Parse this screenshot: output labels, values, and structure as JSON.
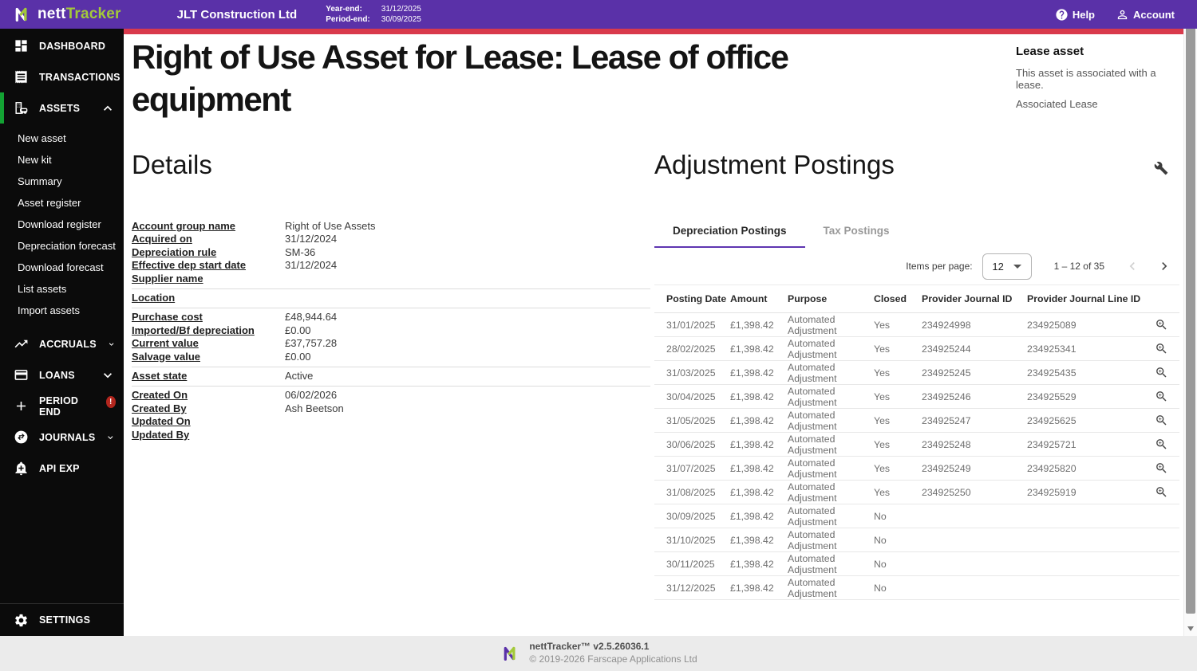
{
  "colors": {
    "purple": "#5a31a8",
    "red": "#d93a4c",
    "green": "#13a233",
    "logoGreen": "#a3c93a",
    "badge": "#b3261e",
    "tabPurple": "#5e35b1"
  },
  "header": {
    "brand_left": "nett",
    "brand_right": "Tracker",
    "company": "JLT Construction Ltd",
    "year_end_label": "Year-end:",
    "year_end_value": "31/12/2025",
    "period_end_label": "Period-end:",
    "period_end_value": "30/09/2025",
    "help_label": "Help",
    "account_label": "Account"
  },
  "sidebar": {
    "items": [
      {
        "label": "DASHBOARD"
      },
      {
        "label": "TRANSACTIONS"
      },
      {
        "label": "ASSETS"
      },
      {
        "label": "ACCRUALS"
      },
      {
        "label": "LOANS"
      },
      {
        "label": "PERIOD END",
        "badge": "!"
      },
      {
        "label": "JOURNALS"
      },
      {
        "label": "API EXP"
      }
    ],
    "assets_submenu": [
      "New asset",
      "New kit",
      "Summary",
      "Asset register",
      "Download register",
      "Depreciation forecast",
      "Download forecast",
      "List assets",
      "Import assets"
    ],
    "settings_label": "SETTINGS"
  },
  "page": {
    "title": "Right of Use Asset for Lease: Lease of office equipment"
  },
  "lease_panel": {
    "heading": "Lease asset",
    "text": "This asset is associated with a lease.",
    "link_label": "Associated Lease"
  },
  "details": {
    "heading": "Details",
    "groups": [
      {
        "fields": [
          {
            "label": "Account group name",
            "value": "Right of Use Assets"
          },
          {
            "label": "Acquired on",
            "value": "31/12/2024"
          },
          {
            "label": "Depreciation rule",
            "value": "SM-36"
          },
          {
            "label": "Effective dep start date",
            "value": "31/12/2024"
          },
          {
            "label": "Supplier name",
            "value": ""
          }
        ]
      },
      {
        "fields": [
          {
            "label": "Location",
            "value": ""
          }
        ]
      },
      {
        "fields": [
          {
            "label": "Purchase cost",
            "value": "£48,944.64"
          },
          {
            "label": "Imported/Bf depreciation",
            "value": "£0.00"
          },
          {
            "label": "Current value",
            "value": "£37,757.28"
          },
          {
            "label": "Salvage value",
            "value": "£0.00"
          }
        ]
      },
      {
        "fields": [
          {
            "label": "Asset state",
            "value": "Active"
          }
        ]
      },
      {
        "fields": [
          {
            "label": "Created On",
            "value": "06/02/2026"
          },
          {
            "label": "Created By",
            "value": "Ash Beetson"
          },
          {
            "label": "Updated On",
            "value": ""
          },
          {
            "label": "Updated By",
            "value": ""
          }
        ]
      }
    ]
  },
  "adjustments": {
    "heading": "Adjustment Postings",
    "tabs": [
      {
        "label": "Depreciation Postings",
        "active": true
      },
      {
        "label": "Tax Postings",
        "active": false
      }
    ],
    "items_per_page_label": "Items per page:",
    "items_per_page_value": "12",
    "range_label": "1 – 12 of 35",
    "table": {
      "columns": [
        "Posting Date",
        "Amount",
        "Purpose",
        "Closed",
        "Provider Journal ID",
        "Provider Journal Line ID"
      ],
      "rows": [
        {
          "posting_date": "31/01/2025",
          "amount": "£1,398.42",
          "purpose": "Automated Adjustment",
          "closed": "Yes",
          "provider_journal_id": "234924998",
          "provider_journal_line_id": "234925089",
          "has_detail_icon": true
        },
        {
          "posting_date": "28/02/2025",
          "amount": "£1,398.42",
          "purpose": "Automated Adjustment",
          "closed": "Yes",
          "provider_journal_id": "234925244",
          "provider_journal_line_id": "234925341",
          "has_detail_icon": true
        },
        {
          "posting_date": "31/03/2025",
          "amount": "£1,398.42",
          "purpose": "Automated Adjustment",
          "closed": "Yes",
          "provider_journal_id": "234925245",
          "provider_journal_line_id": "234925435",
          "has_detail_icon": true
        },
        {
          "posting_date": "30/04/2025",
          "amount": "£1,398.42",
          "purpose": "Automated Adjustment",
          "closed": "Yes",
          "provider_journal_id": "234925246",
          "provider_journal_line_id": "234925529",
          "has_detail_icon": true
        },
        {
          "posting_date": "31/05/2025",
          "amount": "£1,398.42",
          "purpose": "Automated Adjustment",
          "closed": "Yes",
          "provider_journal_id": "234925247",
          "provider_journal_line_id": "234925625",
          "has_detail_icon": true
        },
        {
          "posting_date": "30/06/2025",
          "amount": "£1,398.42",
          "purpose": "Automated Adjustment",
          "closed": "Yes",
          "provider_journal_id": "234925248",
          "provider_journal_line_id": "234925721",
          "has_detail_icon": true
        },
        {
          "posting_date": "31/07/2025",
          "amount": "£1,398.42",
          "purpose": "Automated Adjustment",
          "closed": "Yes",
          "provider_journal_id": "234925249",
          "provider_journal_line_id": "234925820",
          "has_detail_icon": true
        },
        {
          "posting_date": "31/08/2025",
          "amount": "£1,398.42",
          "purpose": "Automated Adjustment",
          "closed": "Yes",
          "provider_journal_id": "234925250",
          "provider_journal_line_id": "234925919",
          "has_detail_icon": true
        },
        {
          "posting_date": "30/09/2025",
          "amount": "£1,398.42",
          "purpose": "Automated Adjustment",
          "closed": "No",
          "provider_journal_id": "",
          "provider_journal_line_id": "",
          "has_detail_icon": false
        },
        {
          "posting_date": "31/10/2025",
          "amount": "£1,398.42",
          "purpose": "Automated Adjustment",
          "closed": "No",
          "provider_journal_id": "",
          "provider_journal_line_id": "",
          "has_detail_icon": false
        },
        {
          "posting_date": "30/11/2025",
          "amount": "£1,398.42",
          "purpose": "Automated Adjustment",
          "closed": "No",
          "provider_journal_id": "",
          "provider_journal_line_id": "",
          "has_detail_icon": false
        },
        {
          "posting_date": "31/12/2025",
          "amount": "£1,398.42",
          "purpose": "Automated Adjustment",
          "closed": "No",
          "provider_journal_id": "",
          "provider_journal_line_id": "",
          "has_detail_icon": false
        }
      ]
    }
  },
  "footer": {
    "version_line": "nettTracker™ v2.5.26036.1",
    "copyright_line": "© 2019-2026 Farscape Applications Ltd"
  }
}
